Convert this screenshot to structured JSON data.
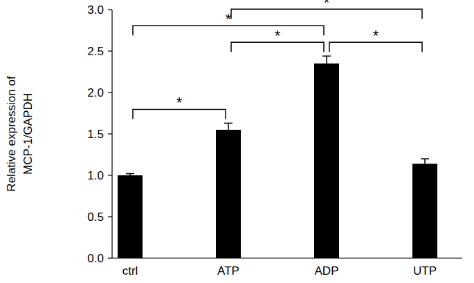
{
  "chart_data": {
    "type": "bar",
    "y_label": [
      "Relative expression of",
      "MCP-1/GAPDH"
    ],
    "categories": [
      "ctrl",
      "ATP",
      "ADP",
      "UTP"
    ],
    "values": [
      1.0,
      1.55,
      2.35,
      1.14
    ],
    "errors": [
      0.02,
      0.08,
      0.09,
      0.06
    ],
    "color": "#000000",
    "ylim": [
      0,
      3
    ],
    "yticks": [
      {
        "value": 0,
        "label": "0.0"
      },
      0.5,
      {
        "value": 1,
        "label": "1.0"
      },
      1.5,
      {
        "value": 2,
        "label": "2.0"
      },
      2.5,
      {
        "value": 3,
        "label": "3.0"
      }
    ],
    "grid": false,
    "annotations": [
      {
        "from": "ctrl",
        "to": "ATP",
        "text": "*"
      },
      {
        "from": "ATP",
        "to": "ADP",
        "text": "*"
      },
      {
        "from": "ADP",
        "to": "UTP",
        "text": "*"
      },
      {
        "from": "ctrl",
        "to": "ADP",
        "text": "*"
      },
      {
        "from": "ATP",
        "to": "UTP",
        "text": "*"
      }
    ]
  }
}
